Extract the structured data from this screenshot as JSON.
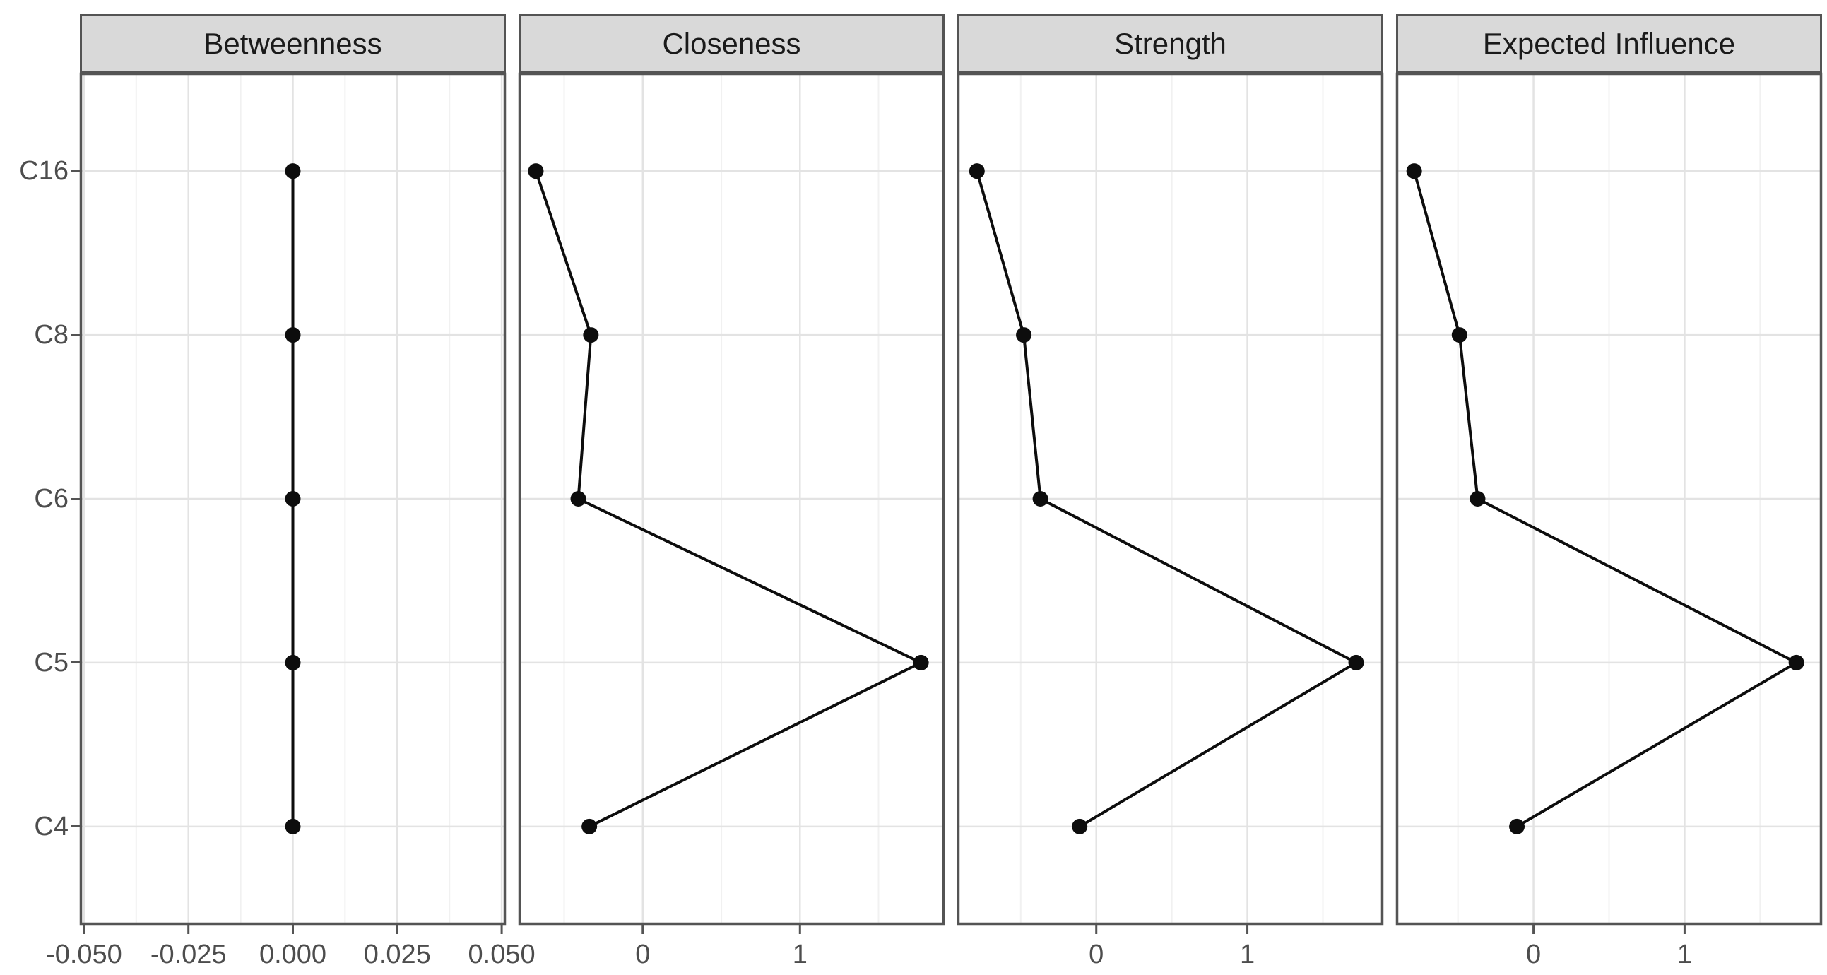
{
  "chart_data": {
    "type": "line",
    "description": "Faceted network centrality plot; one series of points per facet connected by a line across the item categories, z-score x axes",
    "title": "",
    "legend": "none",
    "grid": "on",
    "categories_top_to_bottom": [
      "C16",
      "C8",
      "C6",
      "C5",
      "C4"
    ],
    "panels": [
      {
        "title": "Betweenness",
        "xlim": [
          -0.051,
          0.051
        ],
        "major_ticks": {
          "values": [
            -0.05,
            -0.025,
            0,
            0.025,
            0.05
          ],
          "labels": [
            "-0.050",
            "-0.025",
            "0.000",
            "0.025",
            "0.050"
          ]
        },
        "minor_tick_values": [
          -0.0375,
          -0.0125,
          0.0125,
          0.0375
        ],
        "values": [
          0.0,
          0.0,
          0.0,
          0.0,
          0.0
        ]
      },
      {
        "title": "Closeness",
        "xlim": [
          -0.79,
          1.92
        ],
        "major_ticks": {
          "values": [
            0,
            1
          ],
          "labels": [
            "0",
            "1"
          ]
        },
        "minor_tick_values": [
          -0.5,
          0.5,
          1.5
        ],
        "values": [
          -0.68,
          -0.33,
          -0.41,
          1.77,
          -0.34
        ]
      },
      {
        "title": "Strength",
        "xlim": [
          -0.92,
          1.9
        ],
        "major_ticks": {
          "values": [
            0,
            1
          ],
          "labels": [
            "0",
            "1"
          ]
        },
        "minor_tick_values": [
          -0.5,
          0.5,
          1.5
        ],
        "values": [
          -0.79,
          -0.48,
          -0.37,
          1.72,
          -0.11
        ]
      },
      {
        "title": "Expected Influence",
        "xlim": [
          -0.91,
          1.91
        ],
        "major_ticks": {
          "values": [
            0,
            1
          ],
          "labels": [
            "0",
            "1"
          ]
        },
        "minor_tick_values": [
          -0.5,
          0.5,
          1.5
        ],
        "values": [
          -0.79,
          -0.49,
          -0.37,
          1.74,
          -0.11
        ]
      }
    ],
    "styles": {
      "strip_fill": "#d9d9d9",
      "panel_border": "#545454",
      "grid_major": "#e3e3e3",
      "grid_minor": "#f1f1f1",
      "line_color": "#0d0d0d",
      "point_color": "#0d0d0d",
      "tick_text": "#4d4d4d",
      "strip_text": "#1a1a1a"
    }
  }
}
